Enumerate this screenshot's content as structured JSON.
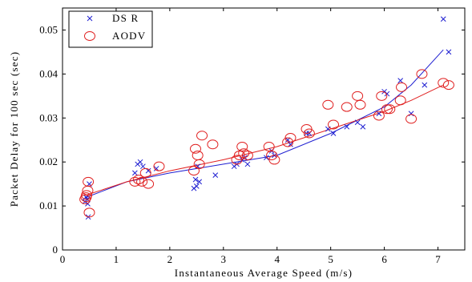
{
  "chart_data": {
    "type": "scatter",
    "title": "",
    "xlabel": "Instantaneous Average Speed (m/s)",
    "ylabel": "Packet Delay for 100 sec (sec)",
    "xlim": [
      0,
      7.5
    ],
    "ylim": [
      0,
      0.055
    ],
    "x_ticks": [
      0,
      1,
      2,
      3,
      4,
      5,
      6,
      7
    ],
    "y_ticks": [
      0,
      0.01,
      0.02,
      0.03,
      0.04,
      0.05
    ],
    "x_tick_labels": [
      "0",
      "1",
      "2",
      "3",
      "4",
      "5",
      "6",
      "7"
    ],
    "y_tick_labels": [
      "0",
      "0.01",
      "0.02",
      "0.03",
      "0.04",
      "0.05"
    ],
    "grid": false,
    "legend_position": "top-left",
    "series": [
      {
        "name": "DS R",
        "marker": "x",
        "color": "#1f1fd1",
        "points": [
          [
            0.42,
            0.011
          ],
          [
            0.44,
            0.012
          ],
          [
            0.46,
            0.0115
          ],
          [
            0.47,
            0.0105
          ],
          [
            0.48,
            0.0075
          ],
          [
            0.5,
            0.015
          ],
          [
            1.35,
            0.0175
          ],
          [
            1.4,
            0.0195
          ],
          [
            1.45,
            0.02
          ],
          [
            1.5,
            0.019
          ],
          [
            1.6,
            0.018
          ],
          [
            1.75,
            0.0185
          ],
          [
            2.45,
            0.014
          ],
          [
            2.5,
            0.0145
          ],
          [
            2.48,
            0.016
          ],
          [
            2.52,
            0.019
          ],
          [
            2.55,
            0.0155
          ],
          [
            2.85,
            0.017
          ],
          [
            3.2,
            0.019
          ],
          [
            3.25,
            0.0195
          ],
          [
            3.35,
            0.0205
          ],
          [
            3.4,
            0.021
          ],
          [
            3.45,
            0.0195
          ],
          [
            3.8,
            0.021
          ],
          [
            3.9,
            0.0225
          ],
          [
            3.95,
            0.0215
          ],
          [
            4.2,
            0.025
          ],
          [
            4.25,
            0.024
          ],
          [
            4.55,
            0.0265
          ],
          [
            4.6,
            0.0265
          ],
          [
            4.95,
            0.0275
          ],
          [
            5.05,
            0.0265
          ],
          [
            5.3,
            0.028
          ],
          [
            5.5,
            0.029
          ],
          [
            5.6,
            0.028
          ],
          [
            5.9,
            0.031
          ],
          [
            6.0,
            0.036
          ],
          [
            6.05,
            0.0355
          ],
          [
            6.3,
            0.0385
          ],
          [
            6.5,
            0.031
          ],
          [
            6.75,
            0.0375
          ],
          [
            7.1,
            0.0525
          ],
          [
            7.2,
            0.045
          ]
        ]
      },
      {
        "name": "AODV",
        "marker": "circle",
        "color": "#e02020",
        "points": [
          [
            0.42,
            0.0115
          ],
          [
            0.44,
            0.012
          ],
          [
            0.45,
            0.0125
          ],
          [
            0.47,
            0.0135
          ],
          [
            0.48,
            0.0155
          ],
          [
            0.5,
            0.0085
          ],
          [
            1.35,
            0.0155
          ],
          [
            1.42,
            0.016
          ],
          [
            1.48,
            0.0155
          ],
          [
            1.55,
            0.0175
          ],
          [
            1.6,
            0.015
          ],
          [
            1.8,
            0.019
          ],
          [
            2.45,
            0.018
          ],
          [
            2.48,
            0.023
          ],
          [
            2.52,
            0.0215
          ],
          [
            2.55,
            0.0195
          ],
          [
            2.6,
            0.026
          ],
          [
            2.8,
            0.024
          ],
          [
            3.25,
            0.0205
          ],
          [
            3.3,
            0.0215
          ],
          [
            3.35,
            0.0235
          ],
          [
            3.38,
            0.022
          ],
          [
            3.45,
            0.0215
          ],
          [
            3.85,
            0.0235
          ],
          [
            3.9,
            0.0215
          ],
          [
            3.95,
            0.0205
          ],
          [
            4.2,
            0.0245
          ],
          [
            4.25,
            0.0255
          ],
          [
            4.55,
            0.0275
          ],
          [
            4.6,
            0.0265
          ],
          [
            4.95,
            0.033
          ],
          [
            5.05,
            0.0285
          ],
          [
            5.3,
            0.0325
          ],
          [
            5.5,
            0.035
          ],
          [
            5.55,
            0.033
          ],
          [
            5.9,
            0.0305
          ],
          [
            5.95,
            0.035
          ],
          [
            6.05,
            0.032
          ],
          [
            6.1,
            0.032
          ],
          [
            6.3,
            0.034
          ],
          [
            6.32,
            0.037
          ],
          [
            6.5,
            0.0298
          ],
          [
            6.7,
            0.04
          ],
          [
            7.1,
            0.038
          ],
          [
            7.2,
            0.0375
          ]
        ]
      }
    ],
    "fit_lines": [
      {
        "series": "DS R",
        "color": "#1f1fd1",
        "points": [
          [
            0.45,
            0.012
          ],
          [
            1.2,
            0.0155
          ],
          [
            2.0,
            0.0175
          ],
          [
            3.0,
            0.0195
          ],
          [
            4.0,
            0.0215
          ],
          [
            5.0,
            0.0265
          ],
          [
            6.0,
            0.0325
          ],
          [
            6.5,
            0.0375
          ],
          [
            7.1,
            0.0455
          ]
        ]
      },
      {
        "series": "AODV",
        "color": "#e02020",
        "points": [
          [
            0.45,
            0.0125
          ],
          [
            1.2,
            0.0155
          ],
          [
            2.0,
            0.018
          ],
          [
            3.0,
            0.0205
          ],
          [
            4.0,
            0.0235
          ],
          [
            5.0,
            0.0275
          ],
          [
            6.0,
            0.0315
          ],
          [
            6.5,
            0.034
          ],
          [
            7.1,
            0.0375
          ]
        ]
      }
    ]
  }
}
